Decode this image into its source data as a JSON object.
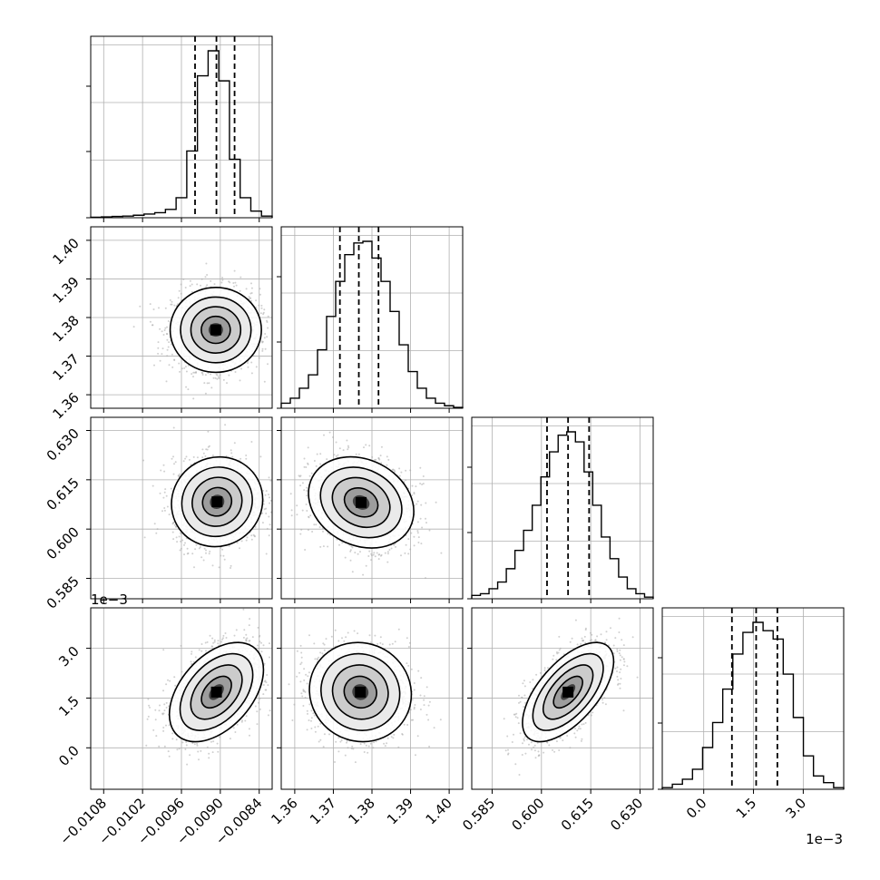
{
  "chart_data": {
    "type": "corner",
    "parameters": [
      {
        "range": [
          -0.011,
          -0.0082
        ],
        "ticks": [
          -0.0108,
          -0.0102,
          -0.0096,
          -0.009,
          -0.0084
        ],
        "tick_labels": [
          "−0.0108",
          "−0.0102",
          "−0.0096",
          "−0.0090",
          "−0.0084"
        ],
        "offset_label": ""
      },
      {
        "range": [
          1.3565,
          1.4035
        ],
        "ticks": [
          1.36,
          1.37,
          1.38,
          1.39,
          1.4
        ],
        "tick_labels": [
          "1.36",
          "1.37",
          "1.38",
          "1.39",
          "1.40"
        ],
        "offset_label": ""
      },
      {
        "range": [
          0.5788,
          0.634
        ],
        "ticks": [
          0.585,
          0.6,
          0.615,
          0.63
        ],
        "tick_labels": [
          "0.585",
          "0.600",
          "0.615",
          "0.630"
        ],
        "offset_label": ""
      },
      {
        "range": [
          -1.25,
          4.22
        ],
        "ticks": [
          0.0,
          1.5,
          3.0
        ],
        "tick_labels": [
          "0.0",
          "1.5",
          "3.0"
        ],
        "offset_label": "1e−3",
        "offset_label_row": "1e−3"
      }
    ],
    "quantiles": [
      [
        -0.00939,
        -0.00906,
        -0.00878
      ],
      [
        1.3717,
        1.3766,
        1.3817
      ],
      [
        0.6017,
        0.6081,
        0.6145
      ],
      [
        0.85,
        1.58,
        2.22
      ]
    ],
    "histograms": [
      [
        0.003,
        0.005,
        0.008,
        0.01,
        0.015,
        0.022,
        0.03,
        0.05,
        0.12,
        0.4,
        0.85,
        1.0,
        0.82,
        0.35,
        0.12,
        0.04,
        0.01
      ],
      [
        0.03,
        0.06,
        0.12,
        0.2,
        0.35,
        0.55,
        0.76,
        0.92,
        0.99,
        1.0,
        0.9,
        0.76,
        0.58,
        0.38,
        0.22,
        0.12,
        0.06,
        0.03,
        0.015,
        0.005
      ],
      [
        0.02,
        0.03,
        0.06,
        0.1,
        0.18,
        0.29,
        0.41,
        0.56,
        0.73,
        0.88,
        0.98,
        1.0,
        0.94,
        0.76,
        0.56,
        0.37,
        0.24,
        0.13,
        0.06,
        0.03,
        0.01
      ],
      [
        0.01,
        0.03,
        0.06,
        0.12,
        0.25,
        0.4,
        0.6,
        0.81,
        0.94,
        1.0,
        0.95,
        0.9,
        0.69,
        0.43,
        0.2,
        0.08,
        0.04,
        0.01
      ]
    ],
    "gaussians": [
      {
        "mean": [
          -0.00907,
          1.3768
        ],
        "sd": [
          0.00032,
          0.005
        ],
        "rho": 0.0
      },
      {
        "mean": [
          -0.00905,
          0.6083
        ],
        "sd": [
          0.00032,
          0.0062
        ],
        "rho": 0.05
      },
      {
        "mean": [
          -0.00906,
          0.00168
        ],
        "sd": [
          0.00033,
          0.00068
        ],
        "rho": 0.45
      },
      {
        "mean": [
          1.3772,
          0.6081
        ],
        "sd": [
          0.0062,
          0.0063
        ],
        "rho": -0.2
      },
      {
        "mean": [
          1.377,
          0.00168
        ],
        "sd": [
          0.006,
          0.00068
        ],
        "rho": -0.05
      },
      {
        "mean": [
          0.6081,
          0.00168
        ],
        "sd": [
          0.0063,
          0.00068
        ],
        "rho": 0.62
      }
    ],
    "grid": true
  }
}
